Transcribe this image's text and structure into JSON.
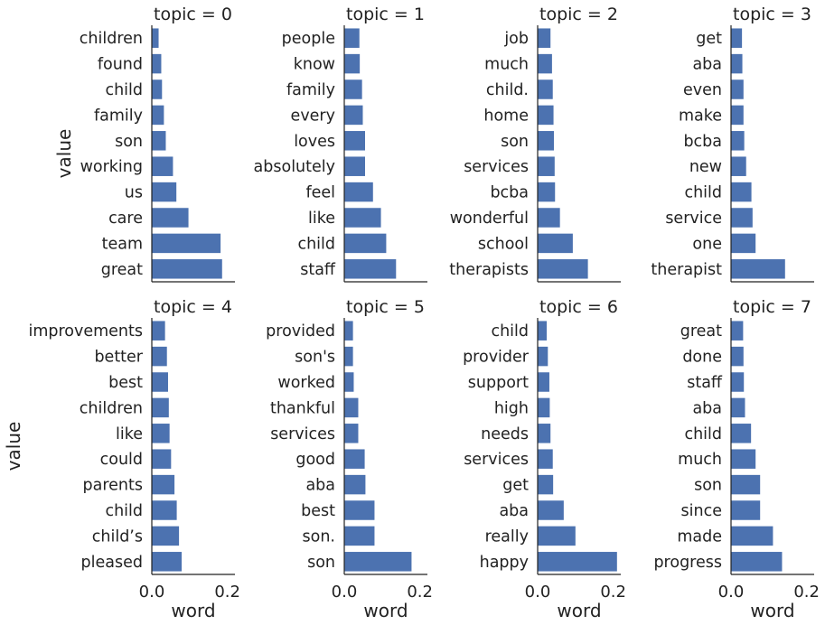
{
  "chart_data": {
    "type": "bar",
    "orientation": "horizontal",
    "xlabel": "word",
    "ylabel": "value",
    "xlim": [
      0,
      0.22
    ],
    "xticks": [
      "0.0",
      "0.2"
    ],
    "bar_color": "#4c72b0",
    "grid": false,
    "panels": [
      {
        "title": "topic = 0",
        "categories": [
          "children",
          "found",
          "child",
          "family",
          "son",
          "working",
          "us",
          "care",
          "team",
          "great"
        ],
        "values": [
          0.018,
          0.025,
          0.027,
          0.032,
          0.037,
          0.056,
          0.065,
          0.097,
          0.182,
          0.186
        ]
      },
      {
        "title": "topic = 1",
        "categories": [
          "people",
          "know",
          "family",
          "every",
          "loves",
          "absolutely",
          "feel",
          "like",
          "child",
          "staff"
        ],
        "values": [
          0.04,
          0.041,
          0.047,
          0.049,
          0.055,
          0.055,
          0.076,
          0.097,
          0.111,
          0.137
        ]
      },
      {
        "title": "topic = 2",
        "categories": [
          "job",
          "much",
          "child.",
          "home",
          "son",
          "services",
          "bcba",
          "wonderful",
          "school",
          "therapists"
        ],
        "values": [
          0.034,
          0.038,
          0.04,
          0.042,
          0.043,
          0.045,
          0.046,
          0.059,
          0.093,
          0.133
        ]
      },
      {
        "title": "topic = 3",
        "categories": [
          "get",
          "aba",
          "even",
          "make",
          "bcba",
          "new",
          "child",
          "service",
          "one",
          "therapist"
        ],
        "values": [
          0.029,
          0.03,
          0.033,
          0.033,
          0.035,
          0.04,
          0.054,
          0.057,
          0.065,
          0.143
        ]
      },
      {
        "title": "topic = 4",
        "categories": [
          "improvements",
          "better",
          "best",
          "children",
          "like",
          "could",
          "parents",
          "child",
          "child’s",
          "pleased"
        ],
        "values": [
          0.035,
          0.04,
          0.043,
          0.045,
          0.047,
          0.051,
          0.06,
          0.066,
          0.072,
          0.079
        ]
      },
      {
        "title": "topic = 5",
        "categories": [
          "provided",
          "son's",
          "worked",
          "thankful",
          "services",
          "good",
          "aba",
          "best",
          "son.",
          "son"
        ],
        "values": [
          0.023,
          0.023,
          0.025,
          0.037,
          0.037,
          0.054,
          0.056,
          0.08,
          0.08,
          0.178
        ]
      },
      {
        "title": "topic = 6",
        "categories": [
          "child",
          "provider",
          "support",
          "high",
          "needs",
          "services",
          "get",
          "aba",
          "really",
          "happy"
        ],
        "values": [
          0.024,
          0.027,
          0.031,
          0.032,
          0.034,
          0.04,
          0.041,
          0.069,
          0.1,
          0.21
        ]
      },
      {
        "title": "topic = 7",
        "categories": [
          "great",
          "done",
          "staff",
          "aba",
          "child",
          "much",
          "son",
          "since",
          "made",
          "progress"
        ],
        "values": [
          0.032,
          0.033,
          0.034,
          0.037,
          0.053,
          0.065,
          0.077,
          0.077,
          0.111,
          0.135
        ]
      }
    ]
  }
}
